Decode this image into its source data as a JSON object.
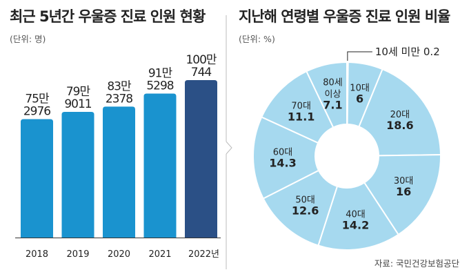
{
  "colors": {
    "bar": "#1a93cf",
    "bar_highlight": "#2b5086",
    "donut": "#a6d9ef",
    "donut_stroke": "#ffffff",
    "text_light": "#ffffff",
    "text_dark": "#222222",
    "baseline": "#333333"
  },
  "source": "자료: 국민건강보험공단",
  "chart_data": [
    {
      "type": "bar",
      "title": "최근 5년간 우울증 진료 인원 현황",
      "unit_label": "(단위: 명)",
      "categories": [
        "2018",
        "2019",
        "2020",
        "2021",
        "2022년"
      ],
      "values": [
        752976,
        799011,
        832378,
        915298,
        1000744
      ],
      "data_labels": [
        [
          "75만",
          "2976"
        ],
        [
          "79만",
          "9011"
        ],
        [
          "83만",
          "2378"
        ],
        [
          "91만",
          "5298"
        ],
        [
          "100만",
          "744"
        ]
      ],
      "highlight_index": 4,
      "ylim": [
        0,
        1000744
      ]
    },
    {
      "type": "pie",
      "title": "지난해 연령별 우울증 진료 인원 비율",
      "unit_label": "(단위: %)",
      "categories": [
        "10세 미만",
        "10대",
        "20대",
        "30대",
        "40대",
        "50대",
        "60대",
        "70대",
        "80세 이상"
      ],
      "values": [
        0.2,
        6,
        18.6,
        16,
        14.2,
        12.6,
        14.3,
        11.1,
        7.1
      ],
      "labels": [
        [
          "10세 미만",
          "0.2"
        ],
        [
          "10대",
          "6"
        ],
        [
          "20대",
          "18.6"
        ],
        [
          "30대",
          "16"
        ],
        [
          "40대",
          "14.2"
        ],
        [
          "50대",
          "12.6"
        ],
        [
          "60대",
          "14.3"
        ],
        [
          "70대",
          "11.1"
        ],
        [
          "80세",
          "이상",
          "7.1"
        ]
      ]
    }
  ]
}
